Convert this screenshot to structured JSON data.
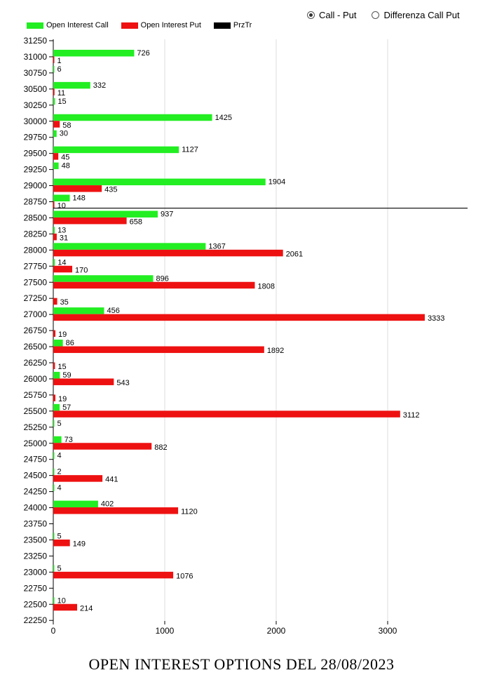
{
  "view_options": [
    {
      "label": "Call - Put",
      "selected": true
    },
    {
      "label": "Differenza Call Put",
      "selected": false
    }
  ],
  "legend": [
    {
      "label": "Open Interest Call",
      "color": "#22ee22"
    },
    {
      "label": "Open Interest Put",
      "color": "#ee1111"
    },
    {
      "label": "PrzTr",
      "color": "#000000"
    }
  ],
  "footer_title": "OPEN INTEREST OPTIONS DEL 28/08/2023",
  "chart_data": {
    "type": "bar",
    "orientation": "horizontal",
    "categories": [
      31250,
      31000,
      30750,
      30500,
      30250,
      30000,
      29750,
      29500,
      29250,
      29000,
      28750,
      28500,
      28250,
      28000,
      27750,
      27500,
      27250,
      27000,
      26750,
      26500,
      26250,
      26000,
      25750,
      25500,
      25250,
      25000,
      24750,
      24500,
      24250,
      24000,
      23750,
      23500,
      23250,
      23000,
      22750,
      22500,
      22250
    ],
    "series": [
      {
        "name": "Open Interest Call",
        "color": "#22ee22",
        "values": [
          null,
          726,
          6,
          332,
          15,
          1425,
          30,
          1127,
          48,
          1904,
          148,
          937,
          13,
          1367,
          14,
          896,
          null,
          456,
          null,
          86,
          null,
          59,
          null,
          57,
          5,
          73,
          4,
          2,
          4,
          402,
          null,
          5,
          null,
          5,
          null,
          10,
          null
        ]
      },
      {
        "name": "Open Interest Put",
        "color": "#ee1111",
        "values": [
          null,
          1,
          null,
          11,
          null,
          58,
          null,
          45,
          null,
          435,
          10,
          658,
          31,
          2061,
          170,
          1808,
          35,
          3333,
          19,
          1892,
          15,
          543,
          19,
          3112,
          null,
          882,
          null,
          441,
          null,
          1120,
          null,
          149,
          null,
          1076,
          null,
          214,
          null
        ]
      }
    ],
    "price_line": {
      "name": "PrzTr",
      "value": 28650,
      "color": "#000000"
    },
    "xlim": [
      0,
      3700
    ],
    "x_ticks": [
      0,
      1000,
      2000,
      3000
    ],
    "grid": "vertical"
  }
}
